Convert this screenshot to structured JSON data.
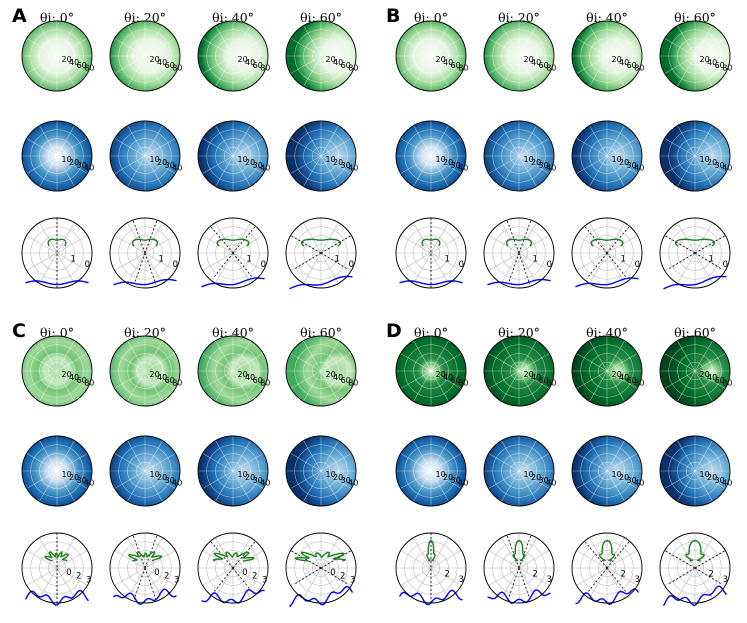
{
  "colors": {
    "green_dark": "#00441b",
    "green_mid": "#41ab5d",
    "green_light": "#c7e9c0",
    "blue_dark": "#08306b",
    "blue_mid": "#4292c6",
    "blue_light": "#deebf7",
    "profile_green": "#1a7f1a",
    "profile_blue": "#0000ff",
    "grid": "#b0b0b0"
  },
  "chart_data": [
    {
      "type": "heatmap",
      "panel": "A",
      "column_titles": [
        "θi: 0°",
        "θi: 20°",
        "θi: 40°",
        "θi: 60°"
      ],
      "rows": [
        {
          "kind": "polar-heatmap",
          "cmap": "Greens",
          "radial_ticks": [
            "20",
            "40",
            "60",
            "80"
          ]
        },
        {
          "kind": "polar-heatmap",
          "cmap": "Blues",
          "radial_ticks": [
            "10",
            "20",
            "30",
            "40"
          ]
        },
        {
          "kind": "polar-profile",
          "radial_ticks": [
            "1",
            "0"
          ],
          "series_colors": [
            "#1a7f1a",
            "#0000ff"
          ]
        }
      ]
    },
    {
      "type": "heatmap",
      "panel": "B",
      "column_titles": [
        "θi: 0°",
        "θi: 20°",
        "θi: 40°",
        "θi: 60°"
      ],
      "rows": [
        {
          "kind": "polar-heatmap",
          "cmap": "Greens",
          "radial_ticks": [
            "20",
            "40",
            "60",
            "80"
          ]
        },
        {
          "kind": "polar-heatmap",
          "cmap": "Blues",
          "radial_ticks": [
            "10",
            "20",
            "30",
            "40"
          ]
        },
        {
          "kind": "polar-profile",
          "radial_ticks": [
            "1",
            "0"
          ],
          "series_colors": [
            "#1a7f1a",
            "#0000ff"
          ]
        }
      ]
    },
    {
      "type": "heatmap",
      "panel": "C",
      "column_titles": [
        "θi: 0°",
        "θi: 20°",
        "θi: 40°",
        "θi: 60°"
      ],
      "rows": [
        {
          "kind": "polar-heatmap",
          "cmap": "Greens",
          "radial_ticks": [
            "20",
            "40",
            "60",
            "80"
          ]
        },
        {
          "kind": "polar-heatmap",
          "cmap": "Blues",
          "radial_ticks": [
            "10",
            "20",
            "30",
            "40"
          ]
        },
        {
          "kind": "polar-profile",
          "radial_ticks": [
            "0",
            "2",
            "3"
          ],
          "series_colors": [
            "#1a7f1a",
            "#0000ff"
          ]
        }
      ]
    },
    {
      "type": "heatmap",
      "panel": "D",
      "column_titles": [
        "θi: 0°",
        "θi: 20°",
        "θi: 40°",
        "θi: 60°"
      ],
      "rows": [
        {
          "kind": "polar-heatmap",
          "cmap": "Greens",
          "radial_ticks": [
            "20",
            "40",
            "60",
            "80"
          ]
        },
        {
          "kind": "polar-heatmap",
          "cmap": "Blues",
          "radial_ticks": [
            "10",
            "20",
            "30",
            "40"
          ]
        },
        {
          "kind": "polar-profile",
          "radial_ticks": [
            "2",
            "3"
          ],
          "series_colors": [
            "#1a7f1a",
            "#0000ff"
          ]
        }
      ]
    }
  ]
}
